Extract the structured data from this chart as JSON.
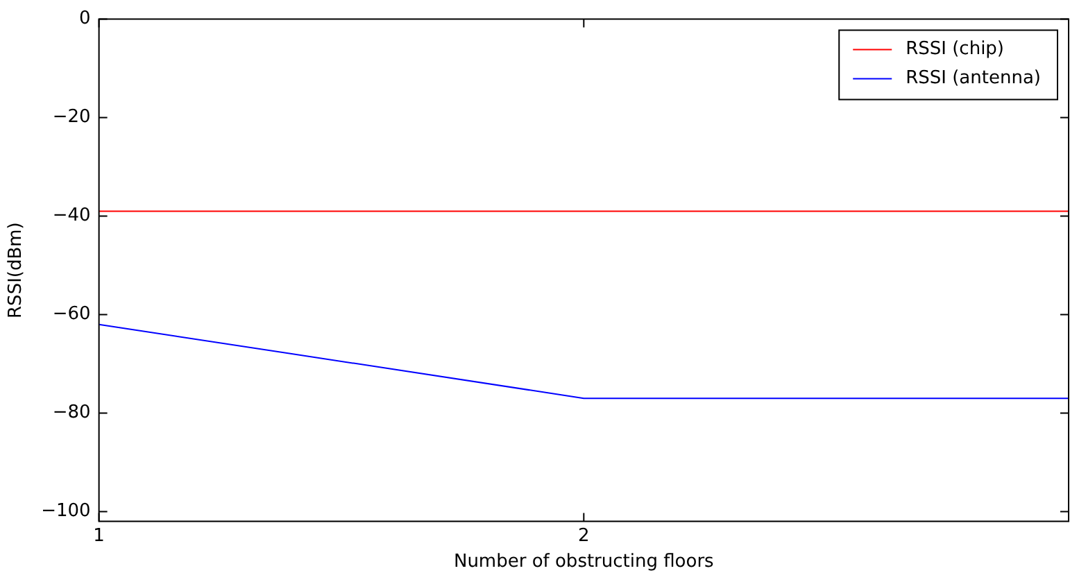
{
  "chart_data": {
    "type": "line",
    "xlabel": "Number of obstructing floors",
    "ylabel": "RSSI(dBm)",
    "x": [
      1,
      2,
      3
    ],
    "series": [
      {
        "name": "RSSI (chip)",
        "color": "#ff0000",
        "values": [
          -39,
          -39,
          -39
        ]
      },
      {
        "name": "RSSI (antenna)",
        "color": "#0000ff",
        "values": [
          -62,
          -77,
          -77
        ]
      }
    ],
    "xlim": [
      1,
      3
    ],
    "xticks": [
      1,
      2
    ],
    "ylim": [
      -102,
      0
    ],
    "yticks": [
      -100,
      -80,
      -60,
      -40,
      -20,
      0
    ],
    "grid": false,
    "legend": "top right",
    "marker": "none",
    "line_style": "solid"
  }
}
